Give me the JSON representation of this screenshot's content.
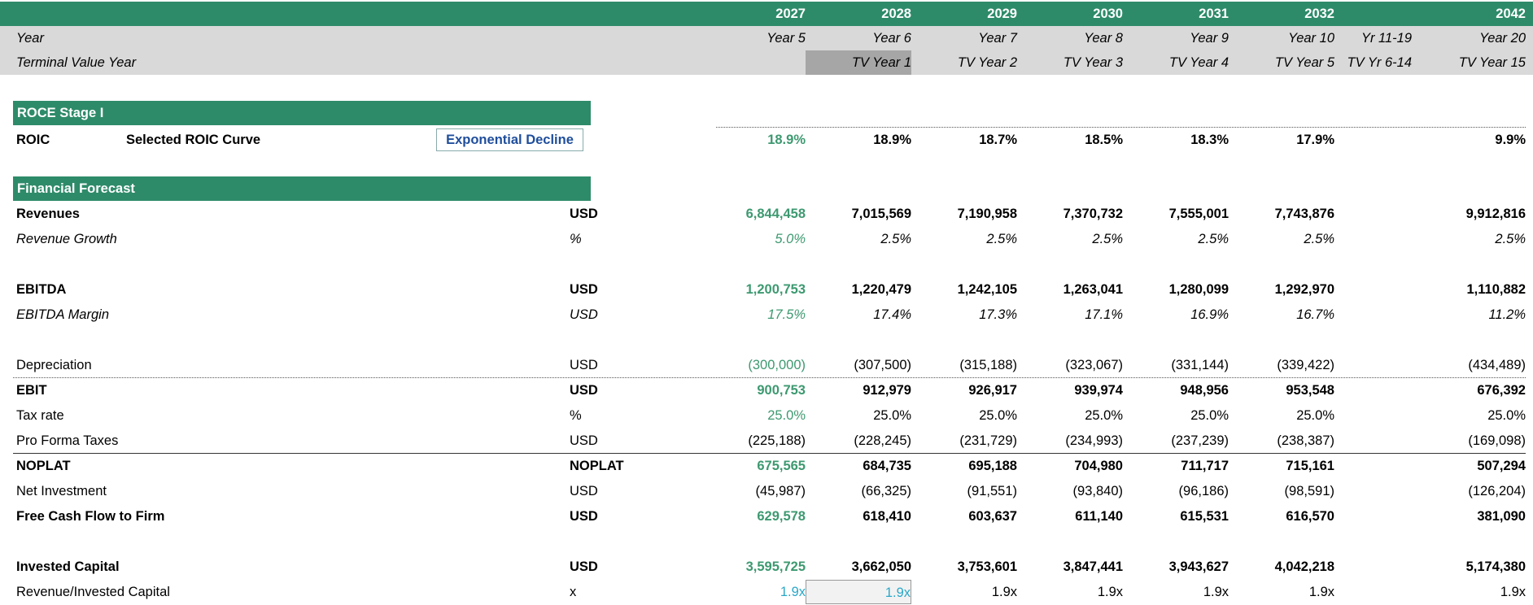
{
  "header": {
    "years": [
      "2027",
      "2028",
      "2029",
      "2030",
      "2031",
      "2032",
      "",
      "2042"
    ],
    "year_label": "Year",
    "year_row": [
      "Year 5",
      "Year 6",
      "Year 7",
      "Year 8",
      "Year 9",
      "Year 10",
      "Yr 11-19",
      "Year 20"
    ],
    "tv_label": "Terminal Value Year",
    "tv_row": [
      "",
      "TV Year 1",
      "TV Year 2",
      "TV Year 3",
      "TV Year 4",
      "TV Year 5",
      "TV Yr 6-14",
      "TV Year 15"
    ]
  },
  "roce": {
    "section_title": "ROCE Stage I",
    "label": "ROIC",
    "curve_label": "Selected ROIC Curve",
    "curve_value": "Exponential Decline",
    "values": [
      "18.9%",
      "18.9%",
      "18.7%",
      "18.5%",
      "18.3%",
      "17.9%",
      "",
      "9.9%"
    ]
  },
  "forecast": {
    "section_title": "Financial Forecast",
    "rows": [
      {
        "label": "Revenues",
        "unit": "USD",
        "values": [
          "6,844,458",
          "7,015,569",
          "7,190,958",
          "7,370,732",
          "7,555,001",
          "7,743,876",
          "",
          "9,912,816"
        ]
      },
      {
        "label": "Revenue Growth",
        "unit": "%",
        "values": [
          "5.0%",
          "2.5%",
          "2.5%",
          "2.5%",
          "2.5%",
          "2.5%",
          "",
          "2.5%"
        ]
      },
      {
        "label": "EBITDA",
        "unit": "USD",
        "values": [
          "1,200,753",
          "1,220,479",
          "1,242,105",
          "1,263,041",
          "1,280,099",
          "1,292,970",
          "",
          "1,110,882"
        ]
      },
      {
        "label": "EBITDA Margin",
        "unit": "USD",
        "values": [
          "17.5%",
          "17.4%",
          "17.3%",
          "17.1%",
          "16.9%",
          "16.7%",
          "",
          "11.2%"
        ]
      },
      {
        "label": "Depreciation",
        "unit": "USD",
        "values": [
          "(300,000)",
          "(307,500)",
          "(315,188)",
          "(323,067)",
          "(331,144)",
          "(339,422)",
          "",
          "(434,489)"
        ]
      },
      {
        "label": "EBIT",
        "unit": "USD",
        "values": [
          "900,753",
          "912,979",
          "926,917",
          "939,974",
          "948,956",
          "953,548",
          "",
          "676,392"
        ]
      },
      {
        "label": "Tax rate",
        "unit": "%",
        "values": [
          "25.0%",
          "25.0%",
          "25.0%",
          "25.0%",
          "25.0%",
          "25.0%",
          "",
          "25.0%"
        ]
      },
      {
        "label": "Pro Forma Taxes",
        "unit": "USD",
        "values": [
          "(225,188)",
          "(228,245)",
          "(231,729)",
          "(234,993)",
          "(237,239)",
          "(238,387)",
          "",
          "(169,098)"
        ]
      },
      {
        "label": "NOPLAT",
        "unit": "NOPLAT",
        "values": [
          "675,565",
          "684,735",
          "695,188",
          "704,980",
          "711,717",
          "715,161",
          "",
          "507,294"
        ]
      },
      {
        "label": "Net Investment",
        "unit": "USD",
        "values": [
          "(45,987)",
          "(66,325)",
          "(91,551)",
          "(93,840)",
          "(96,186)",
          "(98,591)",
          "",
          "(126,204)"
        ]
      },
      {
        "label": "Free Cash Flow to Firm",
        "unit": "USD",
        "values": [
          "629,578",
          "618,410",
          "603,637",
          "611,140",
          "615,531",
          "616,570",
          "",
          "381,090"
        ]
      },
      {
        "label": "Invested Capital",
        "unit": "USD",
        "values": [
          "3,595,725",
          "3,662,050",
          "3,753,601",
          "3,847,441",
          "3,943,627",
          "4,042,218",
          "",
          "5,174,380"
        ]
      },
      {
        "label": "Revenue/Invested Capital",
        "unit": "x",
        "values": [
          "1.9x",
          "1.9x",
          "1.9x",
          "1.9x",
          "1.9x",
          "1.9x",
          "",
          "1.9x"
        ]
      }
    ]
  },
  "colors": {
    "header_green": "#2e8b6a",
    "input_green": "#3d9970",
    "input_cyan": "#2aa8c8",
    "link_blue": "#1f4e9c",
    "grey": "#d9d9d9"
  }
}
